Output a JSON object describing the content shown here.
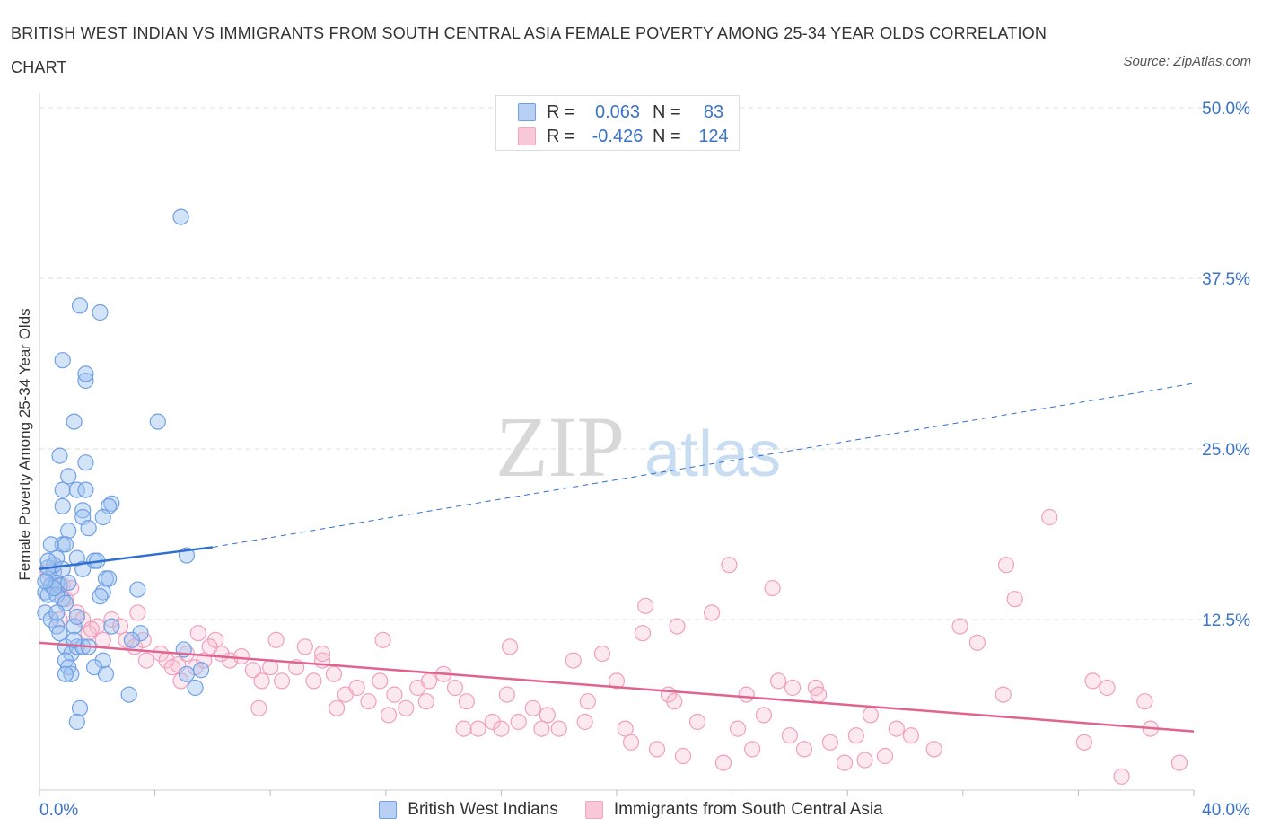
{
  "title": "BRITISH WEST INDIAN VS IMMIGRANTS FROM SOUTH CENTRAL ASIA FEMALE POVERTY AMONG 25-34 YEAR OLDS CORRELATION CHART",
  "source": "Source: ZipAtlas.com",
  "watermark": {
    "zip": "ZIP",
    "atlas": "atlas"
  },
  "legend": {
    "rows": [
      {
        "r_label": "R =",
        "r_value": "0.063",
        "n_label": "N =",
        "n_value": "83"
      },
      {
        "r_label": "R =",
        "r_value": "-0.426",
        "n_label": "N =",
        "n_value": "124"
      }
    ]
  },
  "chart_data": {
    "type": "scatter",
    "title": "BRITISH WEST INDIAN VS IMMIGRANTS FROM SOUTH CENTRAL ASIA FEMALE POVERTY AMONG 25-34 YEAR OLDS CORRELATION CHART",
    "xlabel": "",
    "ylabel": "Female Poverty Among 25-34 Year Olds",
    "xlim": [
      0,
      40
    ],
    "ylim": [
      0,
      50
    ],
    "x_tick_labels": [
      "0.0%",
      "40.0%"
    ],
    "y_tick_labels": [
      "12.5%",
      "25.0%",
      "37.5%",
      "50.0%"
    ],
    "y_ticks": [
      12.5,
      25.0,
      37.5,
      50.0
    ],
    "grid": "horizontal dashed",
    "legend_position": "top-center",
    "colors": {
      "blue": "#6fa0e6",
      "blue_line": "#2e6fcf",
      "pink": "#f3a6c0",
      "pink_line": "#e0648f",
      "accent": "#3a73c7"
    },
    "series": [
      {
        "name": "British West Indians",
        "color": "#6fa0e6",
        "trend": {
          "x": [
            0,
            6
          ],
          "y": [
            16.2,
            17.8
          ],
          "extended_to": [
            40,
            29.8
          ]
        },
        "points": [
          [
            0.3,
            15.5
          ],
          [
            0.5,
            16.0
          ],
          [
            0.2,
            14.5
          ],
          [
            0.4,
            15.0
          ],
          [
            0.6,
            15.2
          ],
          [
            0.3,
            14.3
          ],
          [
            0.5,
            16.5
          ],
          [
            0.7,
            15.0
          ],
          [
            0.8,
            14.0
          ],
          [
            0.2,
            13.0
          ],
          [
            0.4,
            12.5
          ],
          [
            0.6,
            12.0
          ],
          [
            0.9,
            10.5
          ],
          [
            1.1,
            10.0
          ],
          [
            1.3,
            10.5
          ],
          [
            0.9,
            9.5
          ],
          [
            1.0,
            9.0
          ],
          [
            1.2,
            12.0
          ],
          [
            0.7,
            11.5
          ],
          [
            1.5,
            10.5
          ],
          [
            1.1,
            8.5
          ],
          [
            0.9,
            8.5
          ],
          [
            1.4,
            6.0
          ],
          [
            1.3,
            5.0
          ],
          [
            0.8,
            31.5
          ],
          [
            1.4,
            35.5
          ],
          [
            2.1,
            35.0
          ],
          [
            1.6,
            30.0
          ],
          [
            1.6,
            30.5
          ],
          [
            1.2,
            27.0
          ],
          [
            0.7,
            24.5
          ],
          [
            0.8,
            22.0
          ],
          [
            1.6,
            24.0
          ],
          [
            1.0,
            23.0
          ],
          [
            1.3,
            22.0
          ],
          [
            1.6,
            22.0
          ],
          [
            1.5,
            20.5
          ],
          [
            2.5,
            21.0
          ],
          [
            2.4,
            20.8
          ],
          [
            0.8,
            20.8
          ],
          [
            1.0,
            19.0
          ],
          [
            1.5,
            20.0
          ],
          [
            2.2,
            20.0
          ],
          [
            1.7,
            19.2
          ],
          [
            0.8,
            18.0
          ],
          [
            0.4,
            18.0
          ],
          [
            0.9,
            18.0
          ],
          [
            1.3,
            17.0
          ],
          [
            1.9,
            16.8
          ],
          [
            2.0,
            16.8
          ],
          [
            5.1,
            17.2
          ],
          [
            0.6,
            17.0
          ],
          [
            0.8,
            16.2
          ],
          [
            1.5,
            16.2
          ],
          [
            0.3,
            16.3
          ],
          [
            2.3,
            15.5
          ],
          [
            2.4,
            15.5
          ],
          [
            2.2,
            14.5
          ],
          [
            3.4,
            14.7
          ],
          [
            2.1,
            14.2
          ],
          [
            0.6,
            14.3
          ],
          [
            0.9,
            13.7
          ],
          [
            1.3,
            12.7
          ],
          [
            3.5,
            11.5
          ],
          [
            5.0,
            10.3
          ],
          [
            2.2,
            9.5
          ],
          [
            3.2,
            11.0
          ],
          [
            5.1,
            8.5
          ],
          [
            1.9,
            9.0
          ],
          [
            2.3,
            8.5
          ],
          [
            3.1,
            7.0
          ],
          [
            5.4,
            7.5
          ],
          [
            1.7,
            10.5
          ],
          [
            4.1,
            27.0
          ],
          [
            4.9,
            42.0
          ],
          [
            5.6,
            8.8
          ],
          [
            2.5,
            12.0
          ],
          [
            1.2,
            11.0
          ],
          [
            0.6,
            13.0
          ],
          [
            1.0,
            15.2
          ],
          [
            0.5,
            14.8
          ],
          [
            0.2,
            15.3
          ],
          [
            0.3,
            16.8
          ]
        ]
      },
      {
        "name": "Immigrants from South Central Asia",
        "color": "#f3a6c0",
        "trend": {
          "x": [
            0,
            40
          ],
          "y": [
            10.8,
            4.3
          ]
        },
        "points": [
          [
            0.4,
            15.0
          ],
          [
            0.6,
            14.8
          ],
          [
            0.8,
            15.0
          ],
          [
            0.3,
            16.0
          ],
          [
            0.5,
            16.5
          ],
          [
            0.9,
            14.0
          ],
          [
            1.3,
            13.0
          ],
          [
            1.5,
            12.5
          ],
          [
            2.0,
            12.0
          ],
          [
            2.5,
            12.5
          ],
          [
            2.8,
            12.0
          ],
          [
            3.4,
            13.0
          ],
          [
            1.7,
            11.5
          ],
          [
            2.2,
            11.0
          ],
          [
            3.0,
            11.0
          ],
          [
            3.3,
            10.5
          ],
          [
            3.6,
            11.0
          ],
          [
            4.2,
            10.0
          ],
          [
            4.4,
            9.5
          ],
          [
            4.6,
            9.0
          ],
          [
            4.8,
            9.2
          ],
          [
            5.1,
            10.0
          ],
          [
            5.4,
            9.0
          ],
          [
            5.7,
            9.5
          ],
          [
            6.1,
            11.0
          ],
          [
            5.9,
            10.5
          ],
          [
            6.6,
            9.5
          ],
          [
            7.0,
            9.8
          ],
          [
            7.4,
            8.8
          ],
          [
            7.7,
            8.0
          ],
          [
            8.0,
            9.0
          ],
          [
            8.4,
            8.0
          ],
          [
            8.9,
            9.0
          ],
          [
            9.2,
            10.5
          ],
          [
            9.5,
            8.0
          ],
          [
            9.8,
            9.5
          ],
          [
            10.2,
            8.5
          ],
          [
            10.6,
            7.0
          ],
          [
            11.0,
            7.5
          ],
          [
            11.4,
            6.5
          ],
          [
            11.8,
            8.0
          ],
          [
            12.3,
            7.0
          ],
          [
            12.7,
            6.0
          ],
          [
            13.1,
            7.5
          ],
          [
            13.5,
            8.0
          ],
          [
            14.0,
            8.5
          ],
          [
            14.4,
            7.5
          ],
          [
            14.8,
            6.5
          ],
          [
            15.2,
            4.5
          ],
          [
            15.7,
            5.0
          ],
          [
            16.2,
            7.0
          ],
          [
            16.6,
            5.0
          ],
          [
            17.1,
            6.0
          ],
          [
            17.6,
            5.5
          ],
          [
            18.0,
            4.5
          ],
          [
            18.5,
            9.5
          ],
          [
            19.0,
            6.5
          ],
          [
            19.5,
            10.0
          ],
          [
            20.0,
            8.0
          ],
          [
            20.5,
            3.5
          ],
          [
            21.0,
            13.5
          ],
          [
            21.4,
            3.0
          ],
          [
            21.8,
            7.0
          ],
          [
            22.3,
            2.5
          ],
          [
            22.8,
            5.0
          ],
          [
            23.3,
            13.0
          ],
          [
            23.7,
            2.0
          ],
          [
            24.2,
            4.5
          ],
          [
            24.7,
            3.0
          ],
          [
            25.1,
            5.5
          ],
          [
            25.6,
            8.0
          ],
          [
            26.1,
            7.5
          ],
          [
            26.5,
            3.0
          ],
          [
            26.9,
            7.5
          ],
          [
            27.4,
            3.5
          ],
          [
            27.9,
            2.0
          ],
          [
            28.3,
            4.0
          ],
          [
            28.8,
            5.5
          ],
          [
            29.3,
            2.5
          ],
          [
            29.7,
            4.5
          ],
          [
            30.2,
            4.0
          ],
          [
            31.0,
            3.0
          ],
          [
            31.9,
            12.0
          ],
          [
            32.5,
            10.8
          ],
          [
            33.4,
            7.0
          ],
          [
            33.8,
            14.0
          ],
          [
            33.5,
            16.5
          ],
          [
            36.5,
            8.0
          ],
          [
            37.0,
            7.5
          ],
          [
            36.2,
            3.5
          ],
          [
            37.5,
            1.0
          ],
          [
            38.3,
            6.5
          ],
          [
            38.5,
            4.5
          ],
          [
            39.5,
            2.0
          ],
          [
            23.9,
            16.5
          ],
          [
            22.1,
            12.0
          ],
          [
            20.9,
            11.5
          ],
          [
            16.3,
            10.5
          ],
          [
            11.9,
            11.0
          ],
          [
            9.8,
            10.0
          ],
          [
            8.2,
            11.0
          ],
          [
            6.3,
            10.0
          ],
          [
            5.5,
            11.5
          ],
          [
            3.7,
            9.5
          ],
          [
            4.9,
            8.0
          ],
          [
            7.6,
            6.0
          ],
          [
            10.3,
            6.0
          ],
          [
            12.1,
            5.5
          ],
          [
            13.4,
            6.5
          ],
          [
            14.7,
            4.5
          ],
          [
            16.0,
            4.5
          ],
          [
            17.4,
            4.5
          ],
          [
            18.9,
            5.0
          ],
          [
            20.3,
            4.5
          ],
          [
            22.0,
            6.5
          ],
          [
            24.5,
            7.0
          ],
          [
            25.4,
            14.8
          ],
          [
            26.0,
            4.0
          ],
          [
            27.0,
            7.0
          ],
          [
            28.6,
            2.2
          ],
          [
            35.0,
            20.0
          ],
          [
            0.7,
            12.5
          ],
          [
            1.1,
            14.8
          ],
          [
            1.8,
            11.8
          ]
        ]
      }
    ]
  },
  "bottom_legend": {
    "items": [
      {
        "label": "British West Indians"
      },
      {
        "label": "Immigrants from South Central Asia"
      }
    ]
  }
}
